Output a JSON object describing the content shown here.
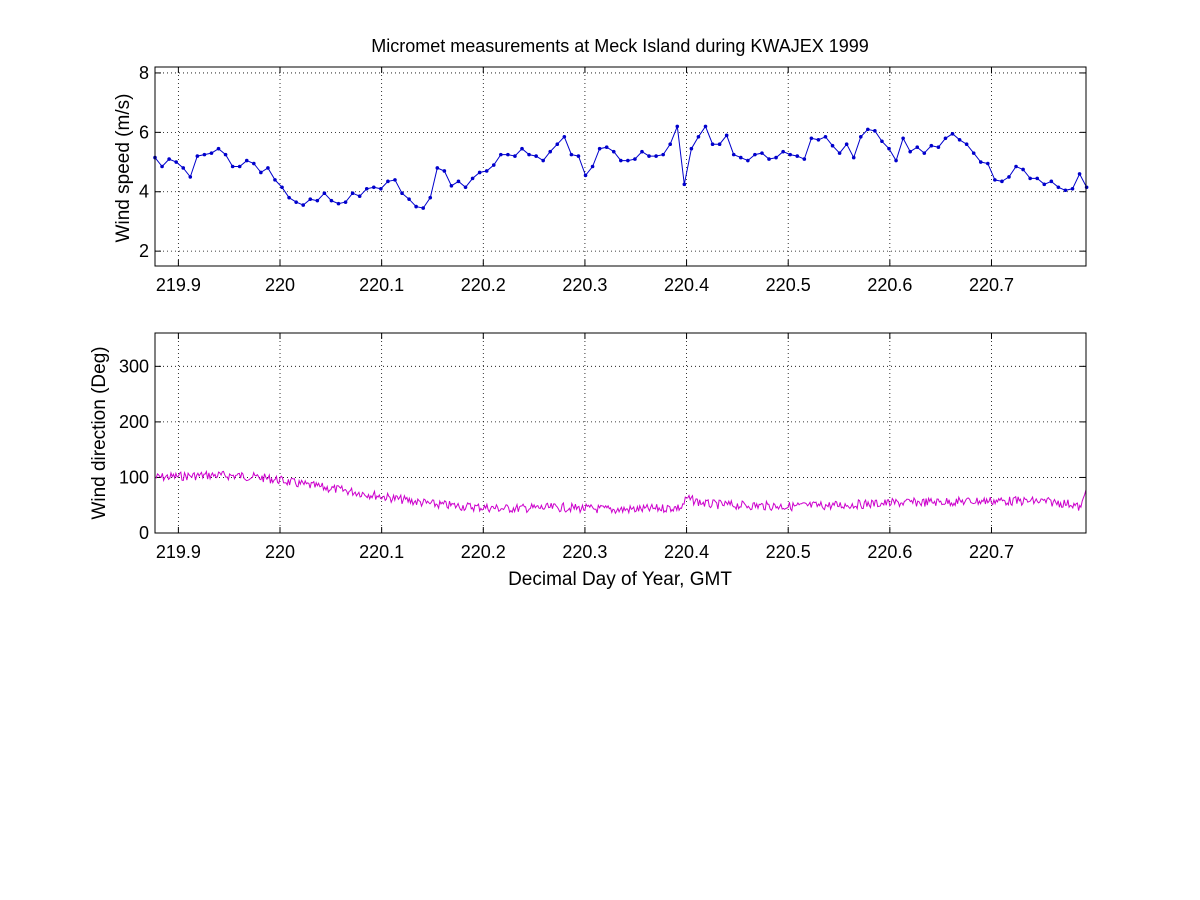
{
  "chart_data": [
    {
      "type": "line",
      "title": "Micromet measurements at Meck Island during KWAJEX 1999",
      "xlabel": "",
      "ylabel": "Wind speed (m/s)",
      "xlim": [
        219.877,
        220.793
      ],
      "ylim": [
        1.5,
        8.2
      ],
      "xticks": [
        219.9,
        220,
        220.1,
        220.2,
        220.3,
        220.4,
        220.5,
        220.6,
        220.7
      ],
      "xtick_labels": [
        "219.9",
        "220",
        "220.1",
        "220.2",
        "220.3",
        "220.4",
        "220.5",
        "220.6",
        "220.7"
      ],
      "yticks": [
        2,
        4,
        6,
        8
      ],
      "ytick_labels": [
        "2",
        "4",
        "6",
        "8"
      ],
      "grid": true,
      "colors": {
        "series": "#0000cc"
      },
      "markers": true,
      "series": [
        {
          "name": "",
          "x0": 219.877,
          "dx": 0.006944,
          "y": [
            5.15,
            4.85,
            5.1,
            5.0,
            4.8,
            4.5,
            5.2,
            5.25,
            5.3,
            5.45,
            5.25,
            4.85,
            4.85,
            5.05,
            4.95,
            4.65,
            4.8,
            4.4,
            4.15,
            3.8,
            3.65,
            3.55,
            3.75,
            3.7,
            3.95,
            3.7,
            3.6,
            3.65,
            3.95,
            3.85,
            4.1,
            4.15,
            4.1,
            4.35,
            4.4,
            3.95,
            3.75,
            3.5,
            3.45,
            3.8,
            4.8,
            4.7,
            4.2,
            4.35,
            4.15,
            4.45,
            4.65,
            4.7,
            4.9,
            5.25,
            5.25,
            5.2,
            5.45,
            5.25,
            5.2,
            5.05,
            5.35,
            5.6,
            5.85,
            5.25,
            5.2,
            4.55,
            4.85,
            5.45,
            5.5,
            5.35,
            5.05,
            5.05,
            5.1,
            5.35,
            5.2,
            5.2,
            5.25,
            5.6,
            6.2,
            4.25,
            5.45,
            5.85,
            6.2,
            5.6,
            5.6,
            5.9,
            5.25,
            5.15,
            5.05,
            5.25,
            5.3,
            5.1,
            5.15,
            5.35,
            5.25,
            5.2,
            5.1,
            5.8,
            5.75,
            5.85,
            5.55,
            5.3,
            5.6,
            5.15,
            5.85,
            6.1,
            6.05,
            5.7,
            5.45,
            5.05,
            5.8,
            5.35,
            5.5,
            5.3,
            5.55,
            5.5,
            5.8,
            5.95,
            5.75,
            5.6,
            5.3,
            5.0,
            4.95,
            4.4,
            4.35,
            4.5,
            4.85,
            4.75,
            4.45,
            4.45,
            4.25,
            4.35,
            4.15,
            4.05,
            4.1,
            4.6,
            4.15
          ]
        }
      ]
    },
    {
      "type": "line",
      "title": "",
      "xlabel": "Decimal Day of Year, GMT",
      "ylabel": "Wind direction (Deg)",
      "xlim": [
        219.877,
        220.793
      ],
      "ylim": [
        0,
        360
      ],
      "xticks": [
        219.9,
        220,
        220.1,
        220.2,
        220.3,
        220.4,
        220.5,
        220.6,
        220.7
      ],
      "xtick_labels": [
        "219.9",
        "220",
        "220.1",
        "220.2",
        "220.3",
        "220.4",
        "220.5",
        "220.6",
        "220.7"
      ],
      "yticks": [
        0,
        100,
        200,
        300
      ],
      "ytick_labels": [
        "0",
        "100",
        "200",
        "300"
      ],
      "grid": true,
      "colors": {
        "series": "#cc00cc"
      },
      "markers": false,
      "series": [
        {
          "name": "",
          "x": [
            219.877,
            219.9,
            219.93,
            219.96,
            219.98,
            220.0,
            220.02,
            220.05,
            220.08,
            220.1,
            220.12,
            220.15,
            220.18,
            220.2,
            220.22,
            220.25,
            220.28,
            220.3,
            220.33,
            220.36,
            220.38,
            220.395,
            220.4,
            220.42,
            220.45,
            220.5,
            220.55,
            220.6,
            220.65,
            220.7,
            220.75,
            220.78,
            220.788,
            220.793
          ],
          "y": [
            100,
            102,
            104,
            103,
            100,
            95,
            88,
            80,
            72,
            66,
            60,
            52,
            48,
            46,
            44,
            45,
            46,
            44,
            42,
            43,
            45,
            46,
            62,
            52,
            50,
            48,
            50,
            54,
            56,
            58,
            57,
            52,
            44,
            78
          ]
        }
      ]
    }
  ]
}
